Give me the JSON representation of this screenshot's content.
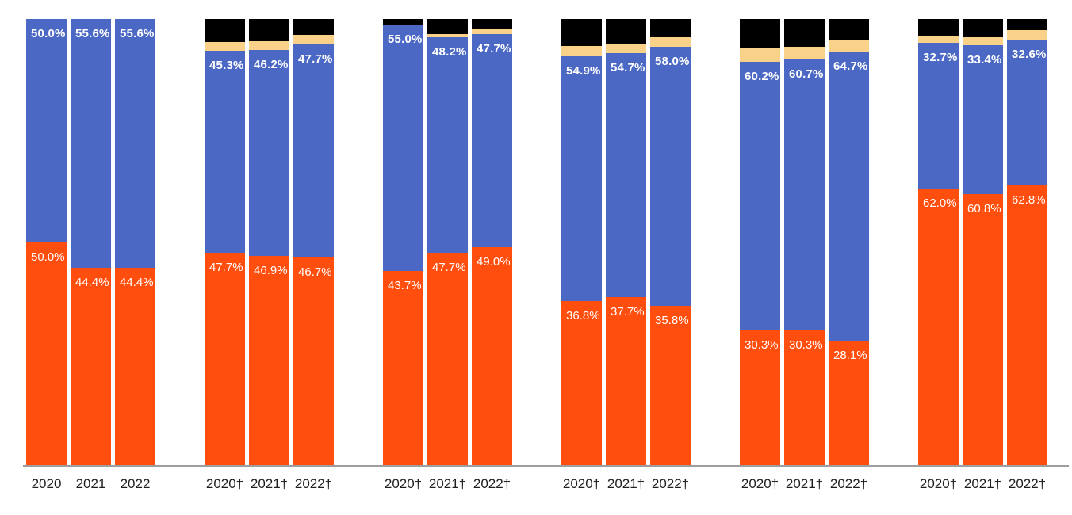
{
  "chart_data": {
    "type": "bar",
    "stacked": true,
    "orientation": "vertical",
    "unit": "percent",
    "ylim": [
      0,
      100
    ],
    "grid": false,
    "legend": "none",
    "title": "",
    "xlabel": "",
    "ylabel": "",
    "colors": {
      "orange": "#FF4E0D",
      "blue": "#4B68C4",
      "yellow": "#FAD189",
      "black": "#000000",
      "axis_line": "#9E9E9E",
      "value_label_text": "#FFFFFF",
      "x_tick_text": "#1F1F1F"
    },
    "segment_order_bottom_to_top": [
      "orange",
      "blue",
      "yellow",
      "black"
    ],
    "note": "Only orange (bottom) and blue segments carry printed data labels; thin yellow and black top segments are unlabeled and their sizes are estimated from the image so each bar totals 100%.",
    "groups": [
      {
        "bars": [
          {
            "x": "2020",
            "orange": 50.0,
            "blue": 50.0,
            "yellow": 0,
            "black": 0,
            "orange_label": "50.0%",
            "blue_label": "50.0%"
          },
          {
            "x": "2021",
            "orange": 44.4,
            "blue": 55.6,
            "yellow": 0,
            "black": 0,
            "orange_label": "44.4%",
            "blue_label": "55.6%"
          },
          {
            "x": "2022",
            "orange": 44.4,
            "blue": 55.6,
            "yellow": 0,
            "black": 0,
            "orange_label": "44.4%",
            "blue_label": "55.6%"
          }
        ]
      },
      {
        "bars": [
          {
            "x": "2020†",
            "orange": 47.7,
            "blue": 45.3,
            "yellow": 1.8,
            "black": 5.2,
            "orange_label": "47.7%",
            "blue_label": "45.3%"
          },
          {
            "x": "2021†",
            "orange": 46.9,
            "blue": 46.2,
            "yellow": 1.9,
            "black": 5.0,
            "orange_label": "46.9%",
            "blue_label": "46.2%"
          },
          {
            "x": "2022†",
            "orange": 46.7,
            "blue": 47.7,
            "yellow": 2.0,
            "black": 3.6,
            "orange_label": "46.7%",
            "blue_label": "47.7%"
          }
        ]
      },
      {
        "bars": [
          {
            "x": "2020†",
            "orange": 43.7,
            "blue": 55.0,
            "yellow": 0,
            "black": 1.3,
            "orange_label": "43.7%",
            "blue_label": "55.0%"
          },
          {
            "x": "2021†",
            "orange": 47.7,
            "blue": 48.2,
            "yellow": 0.7,
            "black": 3.4,
            "orange_label": "47.7%",
            "blue_label": "48.2%"
          },
          {
            "x": "2022†",
            "orange": 49.0,
            "blue": 47.7,
            "yellow": 1.1,
            "black": 2.2,
            "orange_label": "49.0%",
            "blue_label": "47.7%"
          }
        ]
      },
      {
        "bars": [
          {
            "x": "2020†",
            "orange": 36.8,
            "blue": 54.9,
            "yellow": 2.2,
            "black": 6.1,
            "orange_label": "36.8%",
            "blue_label": "54.9%"
          },
          {
            "x": "2021†",
            "orange": 37.7,
            "blue": 54.7,
            "yellow": 2.1,
            "black": 5.5,
            "orange_label": "37.7%",
            "blue_label": "54.7%"
          },
          {
            "x": "2022†",
            "orange": 35.8,
            "blue": 58.0,
            "yellow": 2.2,
            "black": 4.0,
            "orange_label": "35.8%",
            "blue_label": "58.0%"
          }
        ]
      },
      {
        "bars": [
          {
            "x": "2020†",
            "orange": 30.3,
            "blue": 60.2,
            "yellow": 2.9,
            "black": 6.6,
            "orange_label": "30.3%",
            "blue_label": "60.2%"
          },
          {
            "x": "2021†",
            "orange": 30.3,
            "blue": 60.7,
            "yellow": 2.8,
            "black": 6.2,
            "orange_label": "30.3%",
            "blue_label": "60.7%"
          },
          {
            "x": "2022†",
            "orange": 28.1,
            "blue": 64.7,
            "yellow": 2.6,
            "black": 4.6,
            "orange_label": "28.1%",
            "blue_label": "64.7%"
          }
        ]
      },
      {
        "bars": [
          {
            "x": "2020†",
            "orange": 62.0,
            "blue": 32.7,
            "yellow": 1.4,
            "black": 3.9,
            "orange_label": "62.0%",
            "blue_label": "32.7%"
          },
          {
            "x": "2021†",
            "orange": 60.8,
            "blue": 33.4,
            "yellow": 1.7,
            "black": 4.1,
            "orange_label": "60.8%",
            "blue_label": "33.4%"
          },
          {
            "x": "2022†",
            "orange": 62.8,
            "blue": 32.6,
            "yellow": 2.1,
            "black": 2.5,
            "orange_label": "62.8%",
            "blue_label": "32.6%"
          }
        ]
      }
    ]
  }
}
